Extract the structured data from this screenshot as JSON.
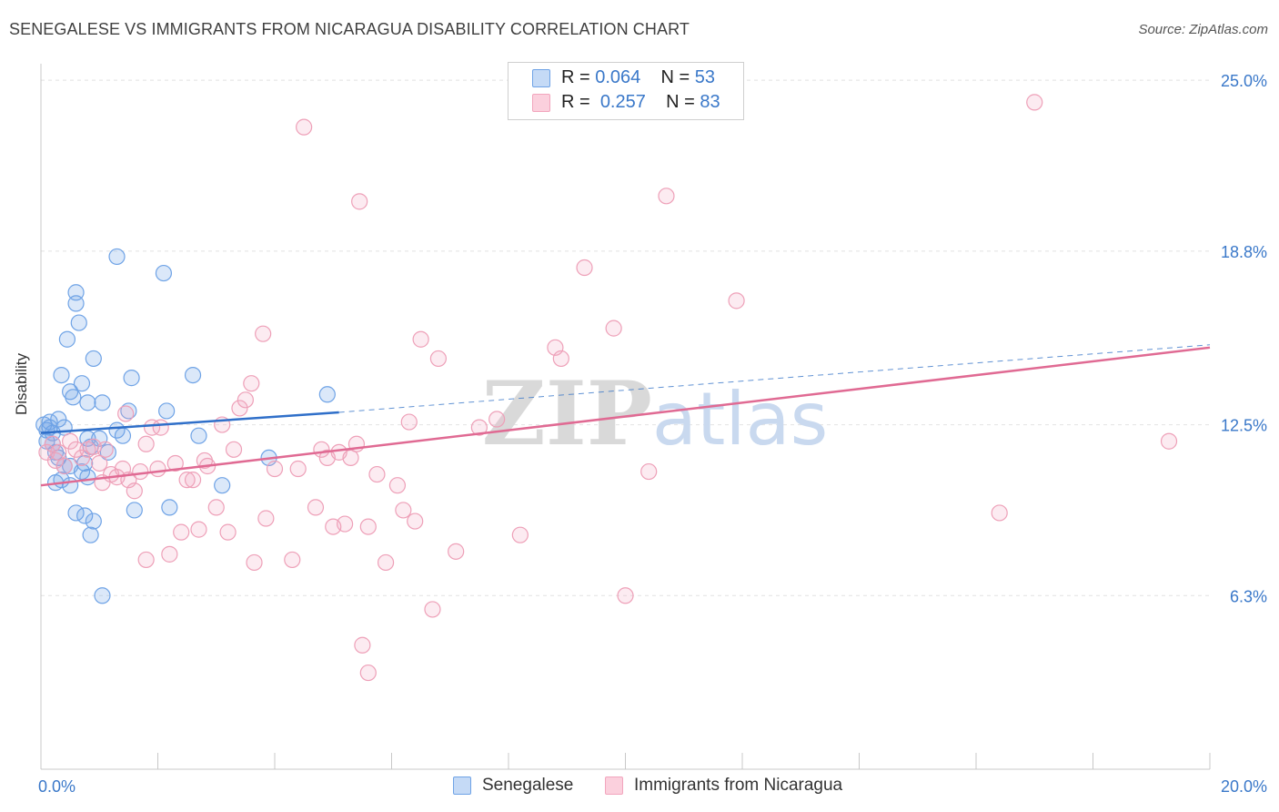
{
  "chart_data": {
    "type": "scatter",
    "title": "SENEGALESE VS IMMIGRANTS FROM NICARAGUA DISABILITY CORRELATION CHART",
    "source": "Source: ZipAtlas.com",
    "xlabel": "",
    "ylabel": "Disability",
    "xlim": [
      0,
      20
    ],
    "ylim": [
      0,
      25.6
    ],
    "x_tick_labels": [
      "0.0%",
      "20.0%"
    ],
    "y_ticks": [
      {
        "value": 6.3,
        "label": "6.3%"
      },
      {
        "value": 12.5,
        "label": "12.5%"
      },
      {
        "value": 18.8,
        "label": "18.8%"
      },
      {
        "value": 25.0,
        "label": "25.0%"
      }
    ],
    "grid": true,
    "watermark": "ZIPatlas",
    "series": [
      {
        "name": "Senegalese",
        "color": "#6fa3e6",
        "stat_r": "0.064",
        "stat_n": "53",
        "trend": {
          "x0": 0,
          "y0": 12.2,
          "x1": 5.1,
          "y1": 12.95,
          "dash_x1": 20,
          "dash_y1": 15.4
        },
        "points": [
          [
            0.05,
            12.5
          ],
          [
            0.1,
            12.3
          ],
          [
            0.1,
            11.9
          ],
          [
            0.15,
            12.6
          ],
          [
            0.2,
            12.2
          ],
          [
            0.2,
            11.8
          ],
          [
            0.25,
            10.4
          ],
          [
            0.3,
            11.3
          ],
          [
            0.3,
            12.7
          ],
          [
            0.35,
            10.5
          ],
          [
            0.35,
            14.3
          ],
          [
            0.4,
            12.4
          ],
          [
            0.4,
            11.0
          ],
          [
            0.45,
            15.6
          ],
          [
            0.5,
            13.7
          ],
          [
            0.5,
            11.0
          ],
          [
            0.5,
            10.3
          ],
          [
            0.55,
            13.5
          ],
          [
            0.6,
            9.3
          ],
          [
            0.6,
            17.3
          ],
          [
            0.6,
            16.9
          ],
          [
            0.65,
            16.2
          ],
          [
            0.7,
            10.8
          ],
          [
            0.7,
            14.0
          ],
          [
            0.75,
            9.2
          ],
          [
            0.75,
            11.1
          ],
          [
            0.8,
            10.6
          ],
          [
            0.8,
            13.3
          ],
          [
            0.8,
            12.0
          ],
          [
            0.85,
            8.5
          ],
          [
            0.85,
            11.7
          ],
          [
            0.9,
            14.9
          ],
          [
            0.9,
            9.0
          ],
          [
            1.0,
            12.0
          ],
          [
            1.05,
            13.3
          ],
          [
            1.05,
            6.3
          ],
          [
            1.15,
            11.5
          ],
          [
            1.3,
            12.3
          ],
          [
            1.3,
            18.6
          ],
          [
            1.4,
            12.1
          ],
          [
            1.5,
            13.0
          ],
          [
            1.55,
            14.2
          ],
          [
            1.6,
            9.4
          ],
          [
            2.1,
            18.0
          ],
          [
            2.15,
            13.0
          ],
          [
            2.2,
            9.5
          ],
          [
            2.6,
            14.3
          ],
          [
            2.7,
            12.1
          ],
          [
            3.1,
            10.3
          ],
          [
            3.9,
            11.3
          ],
          [
            4.9,
            13.6
          ],
          [
            0.15,
            12.4
          ],
          [
            0.25,
            11.5
          ]
        ]
      },
      {
        "name": "Immigrants from Nicaragua",
        "color": "#f2a5bd",
        "stat_r": "0.257",
        "stat_n": "83",
        "trend": {
          "x0": 0,
          "y0": 10.3,
          "x1": 20,
          "y1": 15.3
        },
        "points": [
          [
            0.1,
            11.5
          ],
          [
            0.2,
            11.8
          ],
          [
            0.25,
            11.2
          ],
          [
            0.3,
            11.5
          ],
          [
            0.4,
            11.0
          ],
          [
            0.5,
            11.9
          ],
          [
            0.6,
            11.6
          ],
          [
            0.7,
            11.3
          ],
          [
            0.8,
            11.6
          ],
          [
            0.9,
            11.7
          ],
          [
            1.0,
            11.1
          ],
          [
            1.05,
            10.4
          ],
          [
            1.1,
            11.6
          ],
          [
            1.2,
            10.7
          ],
          [
            1.3,
            10.6
          ],
          [
            1.4,
            10.9
          ],
          [
            1.45,
            12.9
          ],
          [
            1.5,
            10.5
          ],
          [
            1.6,
            10.1
          ],
          [
            1.7,
            10.8
          ],
          [
            1.8,
            11.8
          ],
          [
            1.8,
            7.6
          ],
          [
            1.9,
            12.4
          ],
          [
            2.0,
            10.9
          ],
          [
            2.05,
            12.4
          ],
          [
            2.2,
            7.8
          ],
          [
            2.3,
            11.1
          ],
          [
            2.4,
            8.6
          ],
          [
            2.5,
            10.5
          ],
          [
            2.6,
            10.5
          ],
          [
            2.7,
            8.7
          ],
          [
            2.8,
            11.2
          ],
          [
            2.85,
            11.0
          ],
          [
            3.0,
            9.5
          ],
          [
            3.1,
            12.5
          ],
          [
            3.2,
            8.6
          ],
          [
            3.3,
            11.6
          ],
          [
            3.4,
            13.1
          ],
          [
            3.5,
            13.4
          ],
          [
            3.6,
            14.0
          ],
          [
            3.65,
            7.5
          ],
          [
            3.8,
            15.8
          ],
          [
            3.85,
            9.1
          ],
          [
            4.0,
            10.9
          ],
          [
            4.3,
            7.6
          ],
          [
            4.4,
            10.9
          ],
          [
            4.5,
            23.3
          ],
          [
            4.7,
            9.5
          ],
          [
            4.8,
            11.6
          ],
          [
            4.9,
            11.3
          ],
          [
            5.0,
            8.8
          ],
          [
            5.1,
            11.5
          ],
          [
            5.2,
            8.9
          ],
          [
            5.3,
            11.3
          ],
          [
            5.4,
            11.8
          ],
          [
            5.45,
            20.6
          ],
          [
            5.5,
            4.5
          ],
          [
            5.6,
            3.5
          ],
          [
            5.6,
            8.8
          ],
          [
            5.75,
            10.7
          ],
          [
            5.9,
            7.5
          ],
          [
            6.1,
            10.3
          ],
          [
            6.2,
            9.4
          ],
          [
            6.3,
            12.6
          ],
          [
            6.4,
            9.0
          ],
          [
            6.5,
            15.6
          ],
          [
            6.7,
            5.8
          ],
          [
            6.8,
            14.9
          ],
          [
            7.1,
            7.9
          ],
          [
            7.5,
            12.4
          ],
          [
            7.8,
            12.7
          ],
          [
            8.2,
            8.5
          ],
          [
            8.8,
            15.3
          ],
          [
            8.9,
            14.9
          ],
          [
            9.3,
            18.2
          ],
          [
            9.8,
            16.0
          ],
          [
            10.0,
            6.3
          ],
          [
            10.4,
            10.8
          ],
          [
            10.7,
            20.8
          ],
          [
            11.9,
            17.0
          ],
          [
            16.4,
            9.3
          ],
          [
            17.0,
            24.2
          ],
          [
            19.3,
            11.9
          ]
        ]
      }
    ]
  },
  "legend": {
    "r_label": "R =",
    "n_label": "N ="
  }
}
